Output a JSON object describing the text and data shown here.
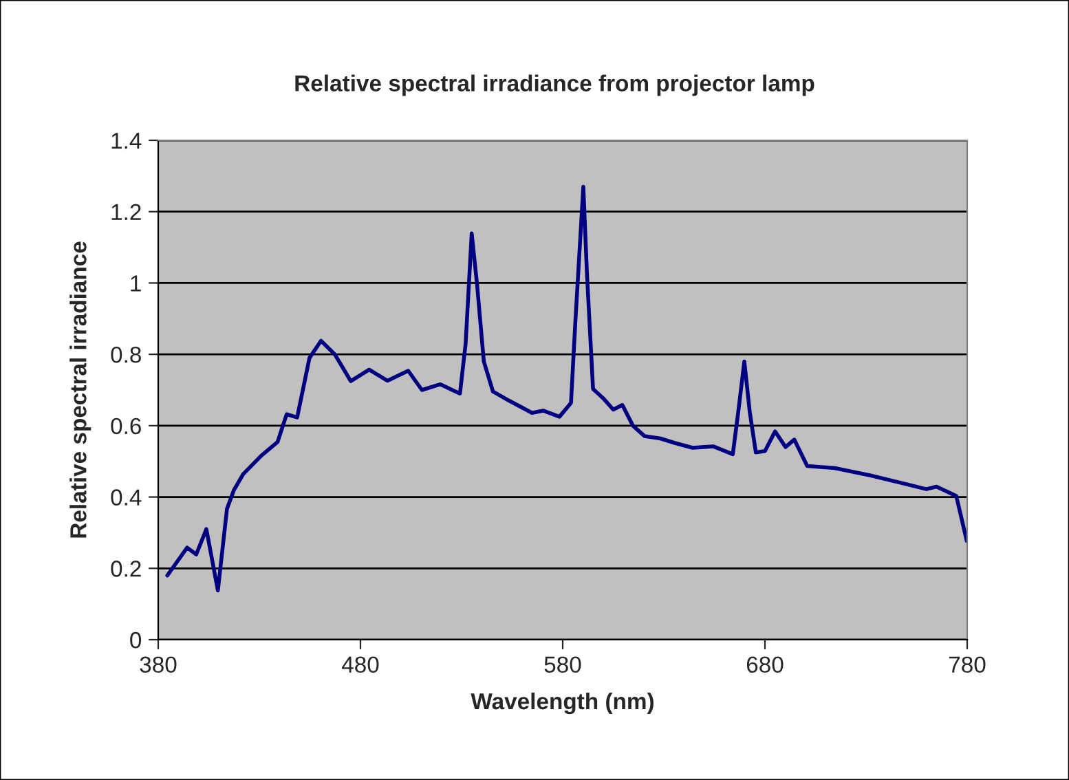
{
  "chart_data": {
    "type": "line",
    "title": "Relative spectral irradiance from projector lamp",
    "xlabel": "Wavelength (nm)",
    "ylabel": "Relative spectral irradiance",
    "x": [
      384.5,
      394.3,
      398.8,
      403.8,
      409.5,
      414,
      417.4,
      422,
      431,
      439,
      443.5,
      448.7,
      454.8,
      460.5,
      467.3,
      475.2,
      484.3,
      493.4,
      503.6,
      510.4,
      519.5,
      529.2,
      532,
      535,
      537.6,
      541,
      545.5,
      553.5,
      564.8,
      570.5,
      578.4,
      584.1,
      586.3,
      590.2,
      592,
      595,
      600,
      605,
      609.5,
      614.7,
      620.4,
      628.3,
      635.1,
      644.2,
      654.4,
      664.1,
      666.8,
      669.8,
      672.5,
      675.5,
      680,
      685,
      690.2,
      694.5,
      700.9,
      714.5,
      732.6,
      748.5,
      759.8,
      764.8,
      774.6,
      779.8
    ],
    "series": [
      {
        "color": "#000080",
        "values": [
          0.18,
          0.258,
          0.239,
          0.31,
          0.138,
          0.367,
          0.419,
          0.464,
          0.516,
          0.554,
          0.632,
          0.623,
          0.79,
          0.838,
          0.8,
          0.725,
          0.757,
          0.726,
          0.754,
          0.7,
          0.716,
          0.69,
          0.83,
          1.139,
          0.999,
          0.78,
          0.696,
          0.67,
          0.636,
          0.642,
          0.625,
          0.664,
          0.896,
          1.27,
          1.025,
          0.703,
          0.677,
          0.645,
          0.658,
          0.6,
          0.571,
          0.564,
          0.552,
          0.538,
          0.542,
          0.52,
          0.638,
          0.78,
          0.638,
          0.525,
          0.529,
          0.584,
          0.54,
          0.561,
          0.487,
          0.481,
          0.46,
          0.438,
          0.422,
          0.429,
          0.403,
          0.277
        ]
      }
    ],
    "xlim": [
      380,
      780
    ],
    "xticks": [
      380,
      480,
      580,
      680,
      780
    ],
    "ylim": [
      0,
      1.4
    ],
    "yticks": [
      0,
      0.2,
      0.4,
      0.6,
      0.8,
      1,
      1.2,
      1.4
    ],
    "grid": "y",
    "legend": false,
    "marker": "none",
    "line_style": "solid"
  }
}
